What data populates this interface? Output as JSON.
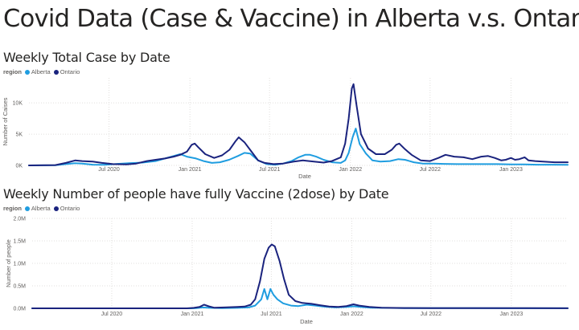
{
  "page_title": "Covid Data (Case & Vaccine) in Alberta v.s. Ontario",
  "colors": {
    "Alberta": "#1f9de0",
    "Ontario": "#1a237e",
    "grid": "#e1dfdd"
  },
  "chart_data": [
    {
      "type": "line",
      "title": "Weekly Total Case by Date",
      "legend_title": "region",
      "legend_placement": "top-left",
      "xlabel": "Date",
      "ylabel": "Number of Caises",
      "x_start": "2020-01-01",
      "x_end": "2023-05-10",
      "ylim": [
        0,
        14000
      ],
      "y_ticks": [
        {
          "value": 0,
          "label": "0K"
        },
        {
          "value": 5000,
          "label": "5K"
        },
        {
          "value": 10000,
          "label": "10K"
        }
      ],
      "x_ticks": [
        {
          "date": "2020-07-01",
          "label": "Jul 2020"
        },
        {
          "date": "2021-01-01",
          "label": "Jan 2021"
        },
        {
          "date": "2021-07-01",
          "label": "Jul 2021"
        },
        {
          "date": "2022-01-01",
          "label": "Jan 2022"
        },
        {
          "date": "2022-07-01",
          "label": "Jul 2022"
        },
        {
          "date": "2023-01-01",
          "label": "Jan 2023"
        }
      ],
      "grid": true,
      "series": [
        {
          "name": "Alberta",
          "points": [
            [
              "2020-01-01",
              0
            ],
            [
              "2020-03-01",
              20
            ],
            [
              "2020-03-25",
              200
            ],
            [
              "2020-04-15",
              350
            ],
            [
              "2020-05-01",
              300
            ],
            [
              "2020-05-25",
              120
            ],
            [
              "2020-06-20",
              100
            ],
            [
              "2020-07-20",
              250
            ],
            [
              "2020-08-15",
              350
            ],
            [
              "2020-09-15",
              450
            ],
            [
              "2020-10-15",
              700
            ],
            [
              "2020-11-05",
              1100
            ],
            [
              "2020-11-25",
              1500
            ],
            [
              "2020-12-10",
              1800
            ],
            [
              "2020-12-25",
              1400
            ],
            [
              "2021-01-15",
              1100
            ],
            [
              "2021-02-01",
              700
            ],
            [
              "2021-02-20",
              400
            ],
            [
              "2021-03-10",
              500
            ],
            [
              "2021-03-31",
              900
            ],
            [
              "2021-04-20",
              1500
            ],
            [
              "2021-05-05",
              2000
            ],
            [
              "2021-05-18",
              1900
            ],
            [
              "2021-06-05",
              800
            ],
            [
              "2021-06-25",
              200
            ],
            [
              "2021-07-15",
              100
            ],
            [
              "2021-08-01",
              300
            ],
            [
              "2021-08-20",
              700
            ],
            [
              "2021-09-05",
              1300
            ],
            [
              "2021-09-20",
              1700
            ],
            [
              "2021-10-01",
              1700
            ],
            [
              "2021-10-15",
              1400
            ],
            [
              "2021-11-01",
              900
            ],
            [
              "2021-11-20",
              500
            ],
            [
              "2021-12-10",
              400
            ],
            [
              "2021-12-20",
              800
            ],
            [
              "2021-12-28",
              2000
            ],
            [
              "2022-01-06",
              4500
            ],
            [
              "2022-01-13",
              5900
            ],
            [
              "2022-01-22",
              3400
            ],
            [
              "2022-02-05",
              1900
            ],
            [
              "2022-02-20",
              800
            ],
            [
              "2022-03-10",
              600
            ],
            [
              "2022-04-01",
              700
            ],
            [
              "2022-04-20",
              1000
            ],
            [
              "2022-05-05",
              900
            ],
            [
              "2022-05-25",
              500
            ],
            [
              "2022-06-15",
              300
            ],
            [
              "2022-07-10",
              300
            ],
            [
              "2022-08-01",
              250
            ],
            [
              "2022-09-01",
              200
            ],
            [
              "2022-10-01",
              200
            ],
            [
              "2022-11-01",
              200
            ],
            [
              "2022-12-01",
              200
            ],
            [
              "2023-01-01",
              150
            ],
            [
              "2023-02-01",
              150
            ],
            [
              "2023-03-01",
              120
            ],
            [
              "2023-04-01",
              120
            ],
            [
              "2023-05-10",
              100
            ]
          ]
        },
        {
          "name": "Ontario",
          "points": [
            [
              "2020-01-01",
              0
            ],
            [
              "2020-03-01",
              50
            ],
            [
              "2020-03-25",
              400
            ],
            [
              "2020-04-15",
              800
            ],
            [
              "2020-05-01",
              700
            ],
            [
              "2020-05-25",
              600
            ],
            [
              "2020-06-15",
              400
            ],
            [
              "2020-07-10",
              200
            ],
            [
              "2020-08-10",
              150
            ],
            [
              "2020-09-01",
              300
            ],
            [
              "2020-09-25",
              700
            ],
            [
              "2020-10-15",
              900
            ],
            [
              "2020-11-05",
              1100
            ],
            [
              "2020-11-25",
              1400
            ],
            [
              "2020-12-10",
              1700
            ],
            [
              "2020-12-25",
              2200
            ],
            [
              "2021-01-05",
              3300
            ],
            [
              "2021-01-12",
              3500
            ],
            [
              "2021-01-20",
              2900
            ],
            [
              "2021-02-05",
              1800
            ],
            [
              "2021-02-25",
              1200
            ],
            [
              "2021-03-15",
              1600
            ],
            [
              "2021-04-01",
              2500
            ],
            [
              "2021-04-15",
              3900
            ],
            [
              "2021-04-22",
              4500
            ],
            [
              "2021-05-05",
              3700
            ],
            [
              "2021-05-20",
              2300
            ],
            [
              "2021-06-05",
              800
            ],
            [
              "2021-06-20",
              400
            ],
            [
              "2021-07-10",
              200
            ],
            [
              "2021-08-01",
              300
            ],
            [
              "2021-08-25",
              600
            ],
            [
              "2021-09-15",
              800
            ],
            [
              "2021-10-10",
              600
            ],
            [
              "2021-11-01",
              450
            ],
            [
              "2021-11-20",
              700
            ],
            [
              "2021-12-10",
              1300
            ],
            [
              "2021-12-20",
              3500
            ],
            [
              "2021-12-28",
              7500
            ],
            [
              "2022-01-04",
              12300
            ],
            [
              "2022-01-08",
              13000
            ],
            [
              "2022-01-15",
              9500
            ],
            [
              "2022-01-25",
              5000
            ],
            [
              "2022-02-10",
              2700
            ],
            [
              "2022-02-28",
              1800
            ],
            [
              "2022-03-20",
              1800
            ],
            [
              "2022-04-05",
              2500
            ],
            [
              "2022-04-15",
              3300
            ],
            [
              "2022-04-22",
              3500
            ],
            [
              "2022-05-05",
              2600
            ],
            [
              "2022-05-20",
              1700
            ],
            [
              "2022-06-10",
              800
            ],
            [
              "2022-07-01",
              700
            ],
            [
              "2022-07-20",
              1200
            ],
            [
              "2022-08-05",
              1700
            ],
            [
              "2022-08-25",
              1400
            ],
            [
              "2022-09-15",
              1300
            ],
            [
              "2022-10-05",
              1000
            ],
            [
              "2022-10-25",
              1400
            ],
            [
              "2022-11-10",
              1500
            ],
            [
              "2022-11-25",
              1200
            ],
            [
              "2022-12-10",
              800
            ],
            [
              "2022-12-20",
              900
            ],
            [
              "2023-01-01",
              1200
            ],
            [
              "2023-01-10",
              900
            ],
            [
              "2023-01-20",
              1000
            ],
            [
              "2023-02-01",
              1300
            ],
            [
              "2023-02-10",
              800
            ],
            [
              "2023-02-25",
              700
            ],
            [
              "2023-03-15",
              600
            ],
            [
              "2023-04-10",
              500
            ],
            [
              "2023-05-10",
              500
            ]
          ]
        }
      ]
    },
    {
      "type": "line",
      "title": "Weekly Number of people have fully Vaccine (2dose) by Date",
      "legend_title": "region",
      "legend_placement": "top-left",
      "xlabel": "Date",
      "ylabel": "Number of people",
      "x_start": "2020-01-01",
      "x_end": "2023-05-10",
      "ylim": [
        0,
        2000000
      ],
      "y_ticks": [
        {
          "value": 0,
          "label": "0.0M"
        },
        {
          "value": 500000,
          "label": "0.5M"
        },
        {
          "value": 1000000,
          "label": "1.0M"
        },
        {
          "value": 1500000,
          "label": "1.5M"
        },
        {
          "value": 2000000,
          "label": "2.0M"
        }
      ],
      "x_ticks": [
        {
          "date": "2020-07-01",
          "label": "Jul 2020"
        },
        {
          "date": "2021-01-01",
          "label": "Jan 2021"
        },
        {
          "date": "2021-07-01",
          "label": "Jul 2021"
        },
        {
          "date": "2022-01-01",
          "label": "Jan 2022"
        },
        {
          "date": "2022-07-01",
          "label": "Jul 2022"
        },
        {
          "date": "2023-01-01",
          "label": "Jan 2023"
        }
      ],
      "grid": true,
      "series": [
        {
          "name": "Alberta",
          "points": [
            [
              "2020-01-01",
              0
            ],
            [
              "2020-12-31",
              0
            ],
            [
              "2021-01-10",
              5000
            ],
            [
              "2021-01-25",
              20000
            ],
            [
              "2021-02-10",
              10000
            ],
            [
              "2021-03-10",
              5000
            ],
            [
              "2021-04-15",
              10000
            ],
            [
              "2021-05-10",
              20000
            ],
            [
              "2021-05-25",
              60000
            ],
            [
              "2021-06-08",
              200000
            ],
            [
              "2021-06-15",
              430000
            ],
            [
              "2021-06-22",
              200000
            ],
            [
              "2021-06-29",
              430000
            ],
            [
              "2021-07-06",
              300000
            ],
            [
              "2021-07-15",
              200000
            ],
            [
              "2021-07-28",
              110000
            ],
            [
              "2021-08-15",
              60000
            ],
            [
              "2021-09-01",
              50000
            ],
            [
              "2021-09-20",
              80000
            ],
            [
              "2021-10-10",
              60000
            ],
            [
              "2021-11-01",
              35000
            ],
            [
              "2021-11-25",
              20000
            ],
            [
              "2021-12-20",
              30000
            ],
            [
              "2022-01-05",
              45000
            ],
            [
              "2022-01-20",
              30000
            ],
            [
              "2022-02-15",
              15000
            ],
            [
              "2022-03-15",
              10000
            ],
            [
              "2022-05-01",
              5000
            ],
            [
              "2022-07-01",
              3000
            ],
            [
              "2022-10-01",
              3000
            ],
            [
              "2023-01-01",
              2000
            ],
            [
              "2023-05-10",
              1000
            ]
          ]
        },
        {
          "name": "Ontario",
          "points": [
            [
              "2020-01-01",
              0
            ],
            [
              "2020-12-20",
              0
            ],
            [
              "2021-01-05",
              10000
            ],
            [
              "2021-01-18",
              30000
            ],
            [
              "2021-01-28",
              80000
            ],
            [
              "2021-02-08",
              45000
            ],
            [
              "2021-02-20",
              15000
            ],
            [
              "2021-03-15",
              20000
            ],
            [
              "2021-04-15",
              30000
            ],
            [
              "2021-05-01",
              40000
            ],
            [
              "2021-05-15",
              80000
            ],
            [
              "2021-05-25",
              200000
            ],
            [
              "2021-06-05",
              600000
            ],
            [
              "2021-06-15",
              1100000
            ],
            [
              "2021-06-25",
              1350000
            ],
            [
              "2021-07-02",
              1420000
            ],
            [
              "2021-07-09",
              1380000
            ],
            [
              "2021-07-20",
              1050000
            ],
            [
              "2021-07-30",
              650000
            ],
            [
              "2021-08-10",
              300000
            ],
            [
              "2021-08-25",
              160000
            ],
            [
              "2021-09-10",
              120000
            ],
            [
              "2021-10-01",
              100000
            ],
            [
              "2021-10-20",
              70000
            ],
            [
              "2021-11-10",
              40000
            ],
            [
              "2021-12-01",
              30000
            ],
            [
              "2021-12-20",
              50000
            ],
            [
              "2022-01-05",
              90000
            ],
            [
              "2022-01-18",
              60000
            ],
            [
              "2022-02-10",
              30000
            ],
            [
              "2022-03-10",
              15000
            ],
            [
              "2022-05-01",
              8000
            ],
            [
              "2022-07-01",
              5000
            ],
            [
              "2022-10-01",
              6000
            ],
            [
              "2022-12-15",
              4000
            ],
            [
              "2023-02-01",
              3000
            ],
            [
              "2023-05-10",
              2000
            ]
          ]
        }
      ]
    }
  ]
}
